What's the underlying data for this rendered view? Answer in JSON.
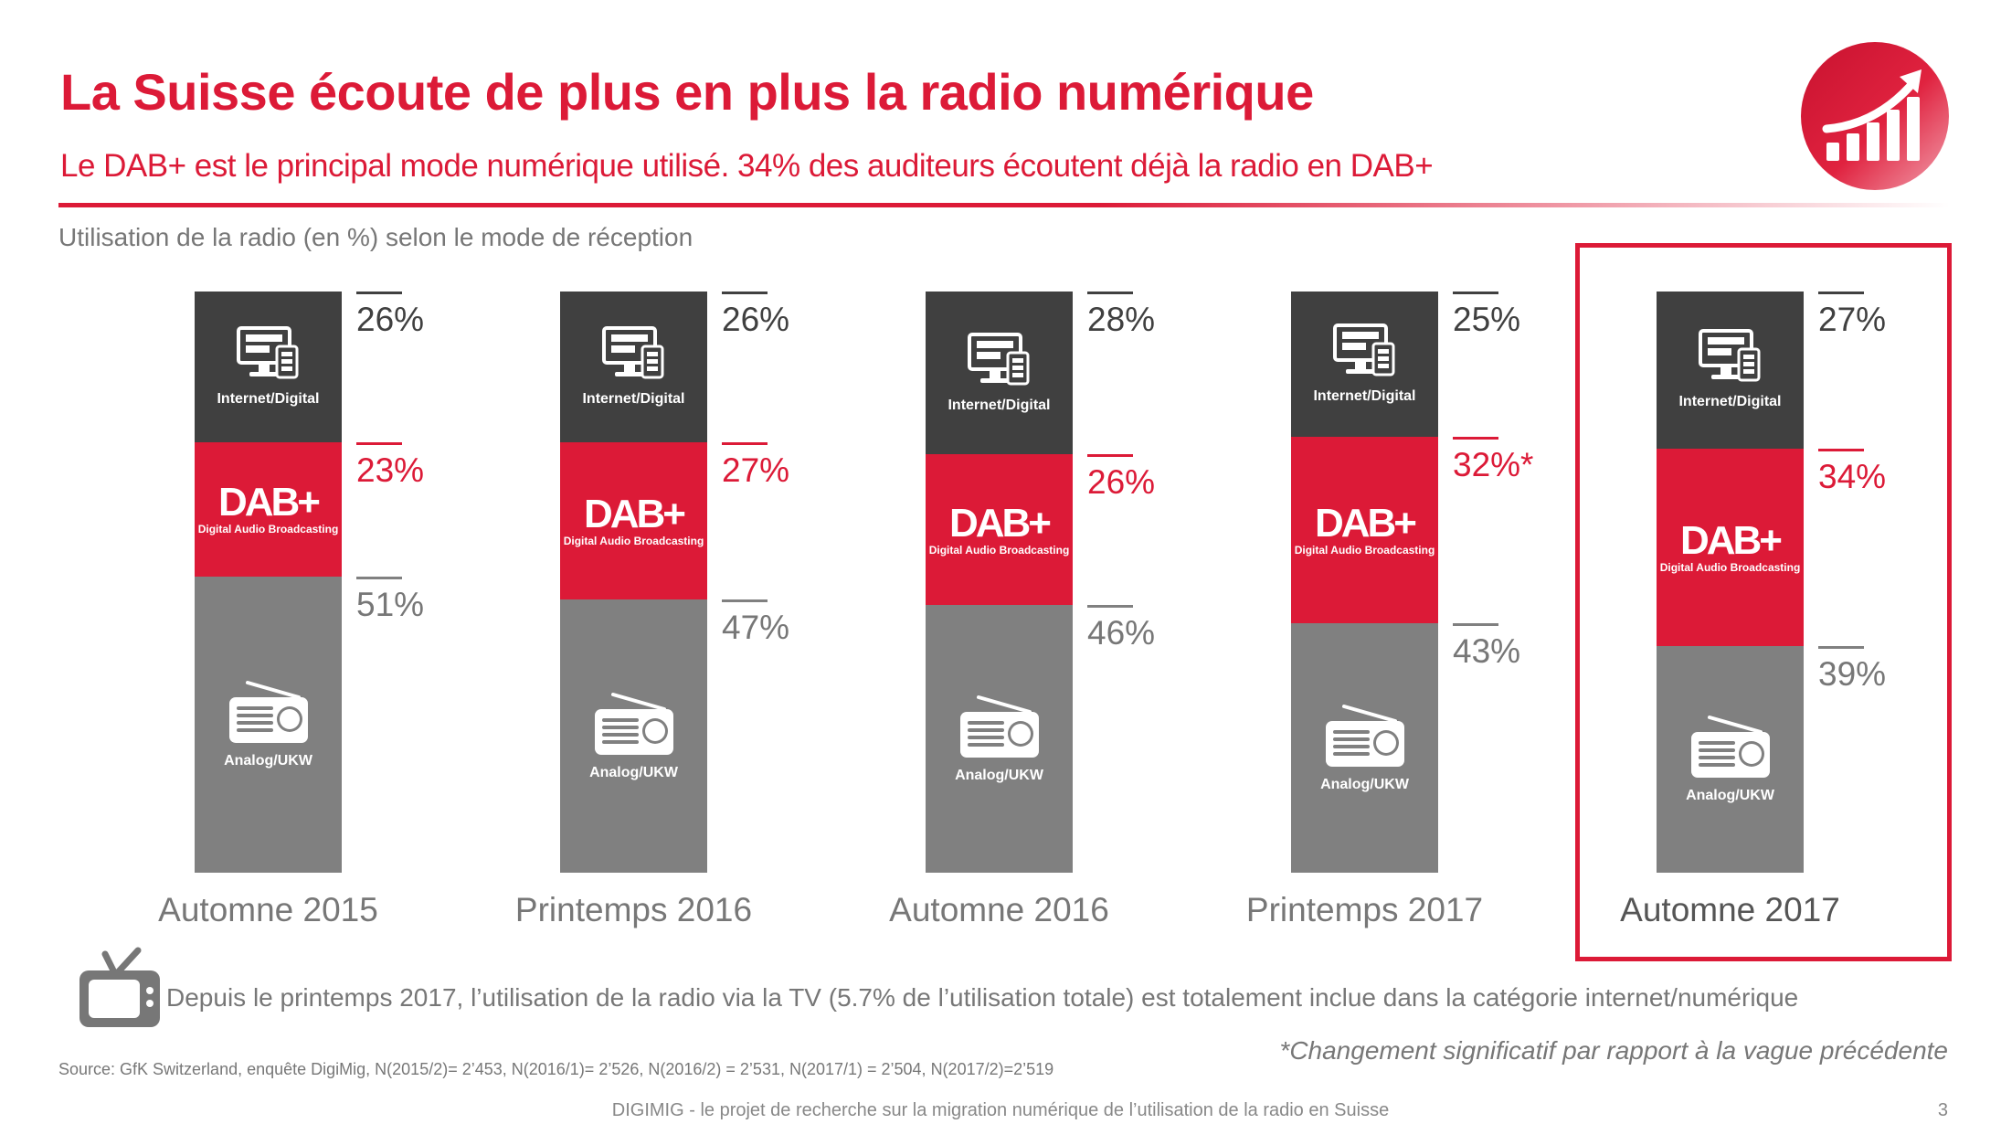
{
  "header": {
    "title": "La Suisse écoute de plus en plus la radio numérique",
    "subtitle": "Le DAB+ est le principal mode numérique utilisé. 34% des auditeurs écoutent déjà la radio en DAB+"
  },
  "chart_data": {
    "type": "bar",
    "stacked": true,
    "orientation": "vertical",
    "title": "Utilisation de la radio (en %) selon le mode de réception",
    "categories": [
      "Automne 2015",
      "Printemps 2016",
      "Automne 2016",
      "Printemps 2017",
      "Automne 2017"
    ],
    "highlighted_category": "Automne 2017",
    "series": [
      {
        "name": "Analog/UKW",
        "color": "#808080",
        "values": [
          51,
          47,
          46,
          43,
          39
        ],
        "labels": [
          "51%",
          "47%",
          "46%",
          "43%",
          "39%"
        ]
      },
      {
        "name": "DAB+ Digital Audio Broadcasting",
        "color": "#dc1a37",
        "values": [
          23,
          27,
          26,
          32,
          34
        ],
        "labels": [
          "23%",
          "27%",
          "26%",
          "32%*",
          "34%"
        ]
      },
      {
        "name": "Internet/Digital",
        "color": "#404040",
        "values": [
          26,
          26,
          28,
          25,
          27
        ],
        "labels": [
          "26%",
          "26%",
          "28%",
          "25%",
          "27%"
        ]
      }
    ],
    "segment_labels": {
      "internet": "Internet/Digital",
      "dab": "DAB+",
      "dab_sub": "Digital Audio Broadcasting",
      "analog": "Analog/UKW"
    },
    "ylim": [
      0,
      100
    ],
    "grid": false,
    "legend": "none"
  },
  "notes": {
    "tv": "Depuis le printemps 2017, l’utilisation de la radio via la TV (5.7% de l’utilisation totale) est totalement inclue dans la catégorie  internet/numérique",
    "significance": "*Changement significatif par rapport à la vague précédente",
    "source": "Source: GfK Switzerland, enquête DigiMig, N(2015/2)= 2’453, N(2016/1)= 2’526, N(2016/2) = 2’531, N(2017/1) = 2’504, N(2017/2)=2’519"
  },
  "footer": {
    "text": "DIGIMIG - le projet de recherche sur la migration numérique de l’utilisation de la radio en Suisse",
    "page": "3"
  },
  "icons": {
    "logo": "growth-chart-arrow-icon",
    "tv": "tv-icon",
    "internet": "monitor-tablet-icon",
    "analog": "radio-icon"
  }
}
